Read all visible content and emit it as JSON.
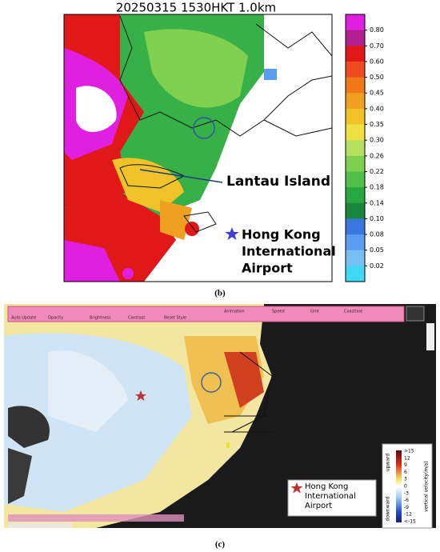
{
  "panel_b": {
    "title": "20250315 1530HKT 1.0km",
    "colorbar_labels": [
      "0.80",
      "0.70",
      "0.60",
      "0.50",
      "0.45",
      "0.40",
      "0.35",
      "0.30",
      "0.26",
      "0.22",
      "0.18",
      "0.14",
      "0.10",
      "0.08",
      "0.05",
      "0.02"
    ],
    "colorbar_colors": [
      "#e020e0",
      "#b02090",
      "#e01818",
      "#f04a20",
      "#f07818",
      "#f0a020",
      "#f0c428",
      "#eee040",
      "#b8e060",
      "#80d050",
      "#50c048",
      "#28a840",
      "#18883c",
      "#3a78e0",
      "#5a9cf0",
      "#78c0f4",
      "#40d8f4"
    ],
    "labels": [
      "Lantau Island",
      "Hong Kong",
      "International",
      "Airport"
    ],
    "caption": "(b)"
  },
  "panel_c": {
    "toolbar": [
      "Auto Update",
      "Opacity",
      "Brightness",
      "Contrast",
      "Reset Style",
      "Animation",
      "Speed",
      "Grid",
      "Coastline"
    ],
    "colorbar_labels": [
      ">15",
      "12",
      "9",
      "6",
      "3",
      "0",
      "-3",
      "-6",
      "-9",
      "-12",
      "<-15"
    ],
    "colorbar_axis_label": "vertical velocity(m/s)",
    "upward": "upward",
    "downward": "downward",
    "legend": [
      "Hong Kong",
      "International",
      "Airport"
    ],
    "caption": "(c)"
  }
}
